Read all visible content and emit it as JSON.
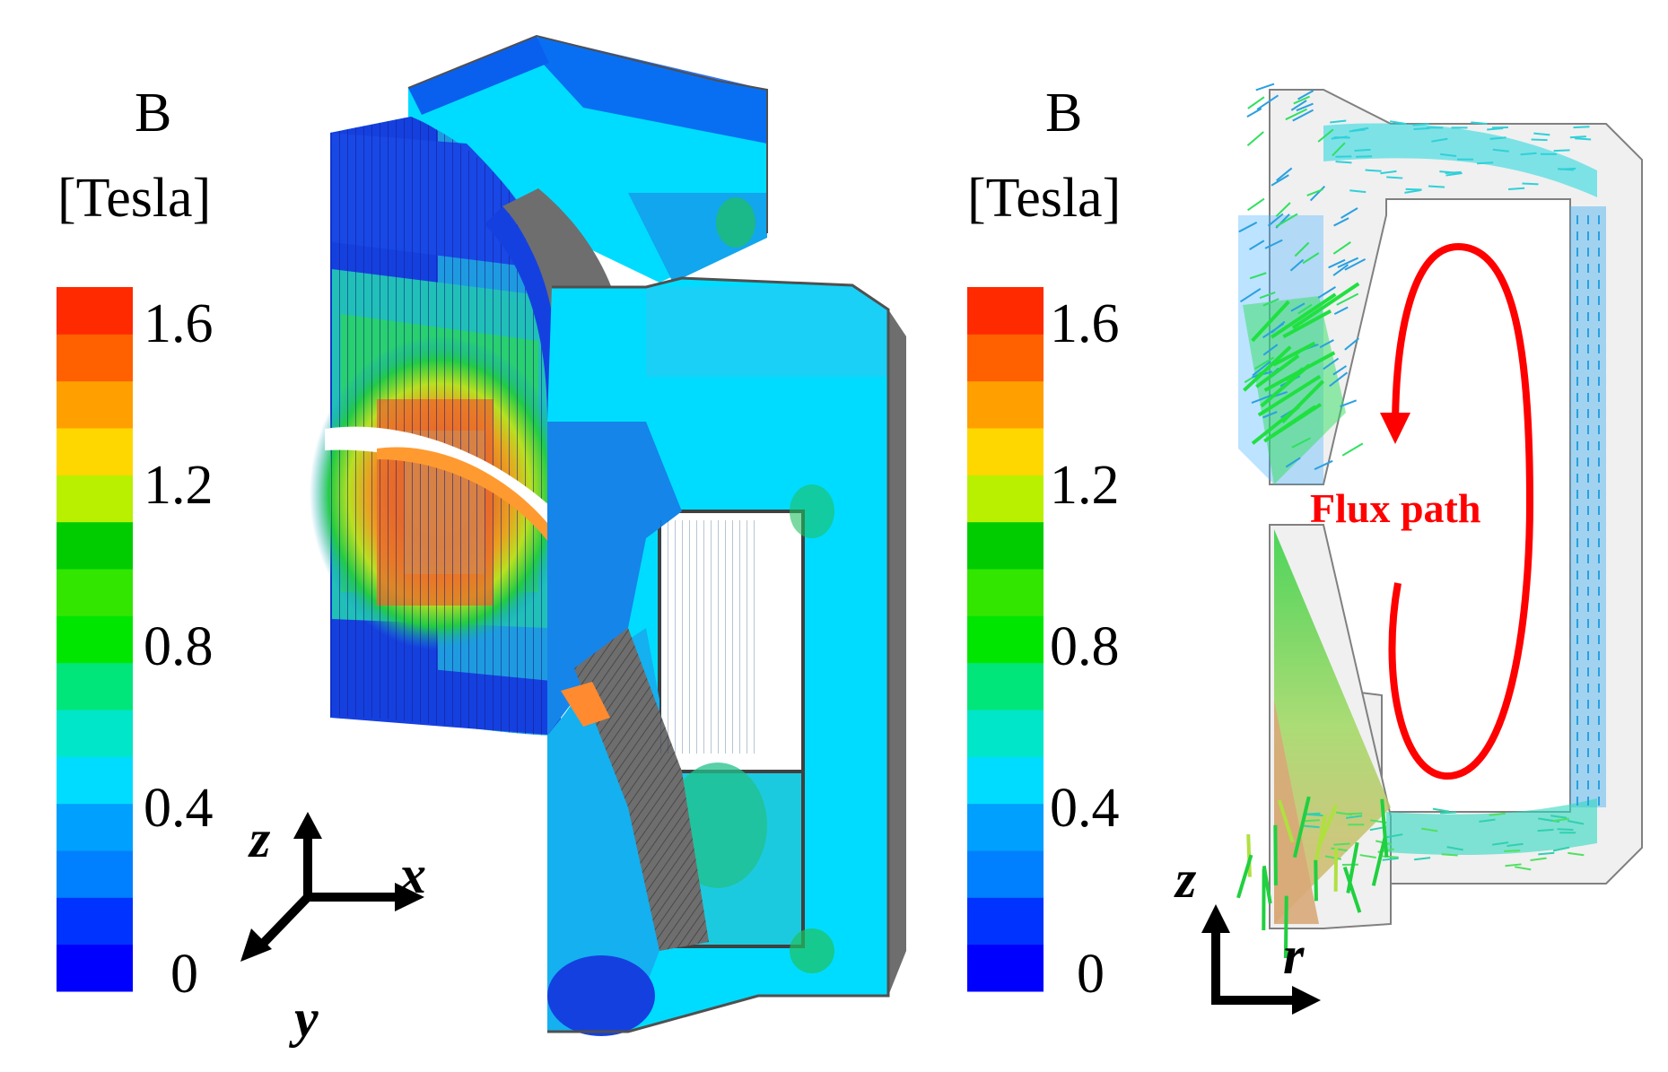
{
  "colors": {
    "scale": [
      "#0000ff",
      "#0033ff",
      "#0080ff",
      "#00a0ff",
      "#00dcff",
      "#00e6c8",
      "#00e67a",
      "#00e600",
      "#33e600",
      "#00cc00",
      "#b8f000",
      "#ffd700",
      "#ffa000",
      "#ff6000",
      "#ff2a00"
    ],
    "accent_arrow": "#ff0000",
    "mesh_gray": "#6e6e6e"
  },
  "legend_left": {
    "title": "B",
    "unit": "[Tesla]",
    "ticks": [
      "1.6",
      "1.2",
      "0.8",
      "0.4",
      "0"
    ]
  },
  "legend_right": {
    "title": "B",
    "unit": "[Tesla]",
    "ticks": [
      "1.6",
      "1.2",
      "0.8",
      "0.4",
      "0"
    ]
  },
  "axes_3d": {
    "z": "z",
    "x": "x",
    "y": "y"
  },
  "axes_2d": {
    "z": "z",
    "r": "r"
  },
  "flux_label": "Flux path"
}
